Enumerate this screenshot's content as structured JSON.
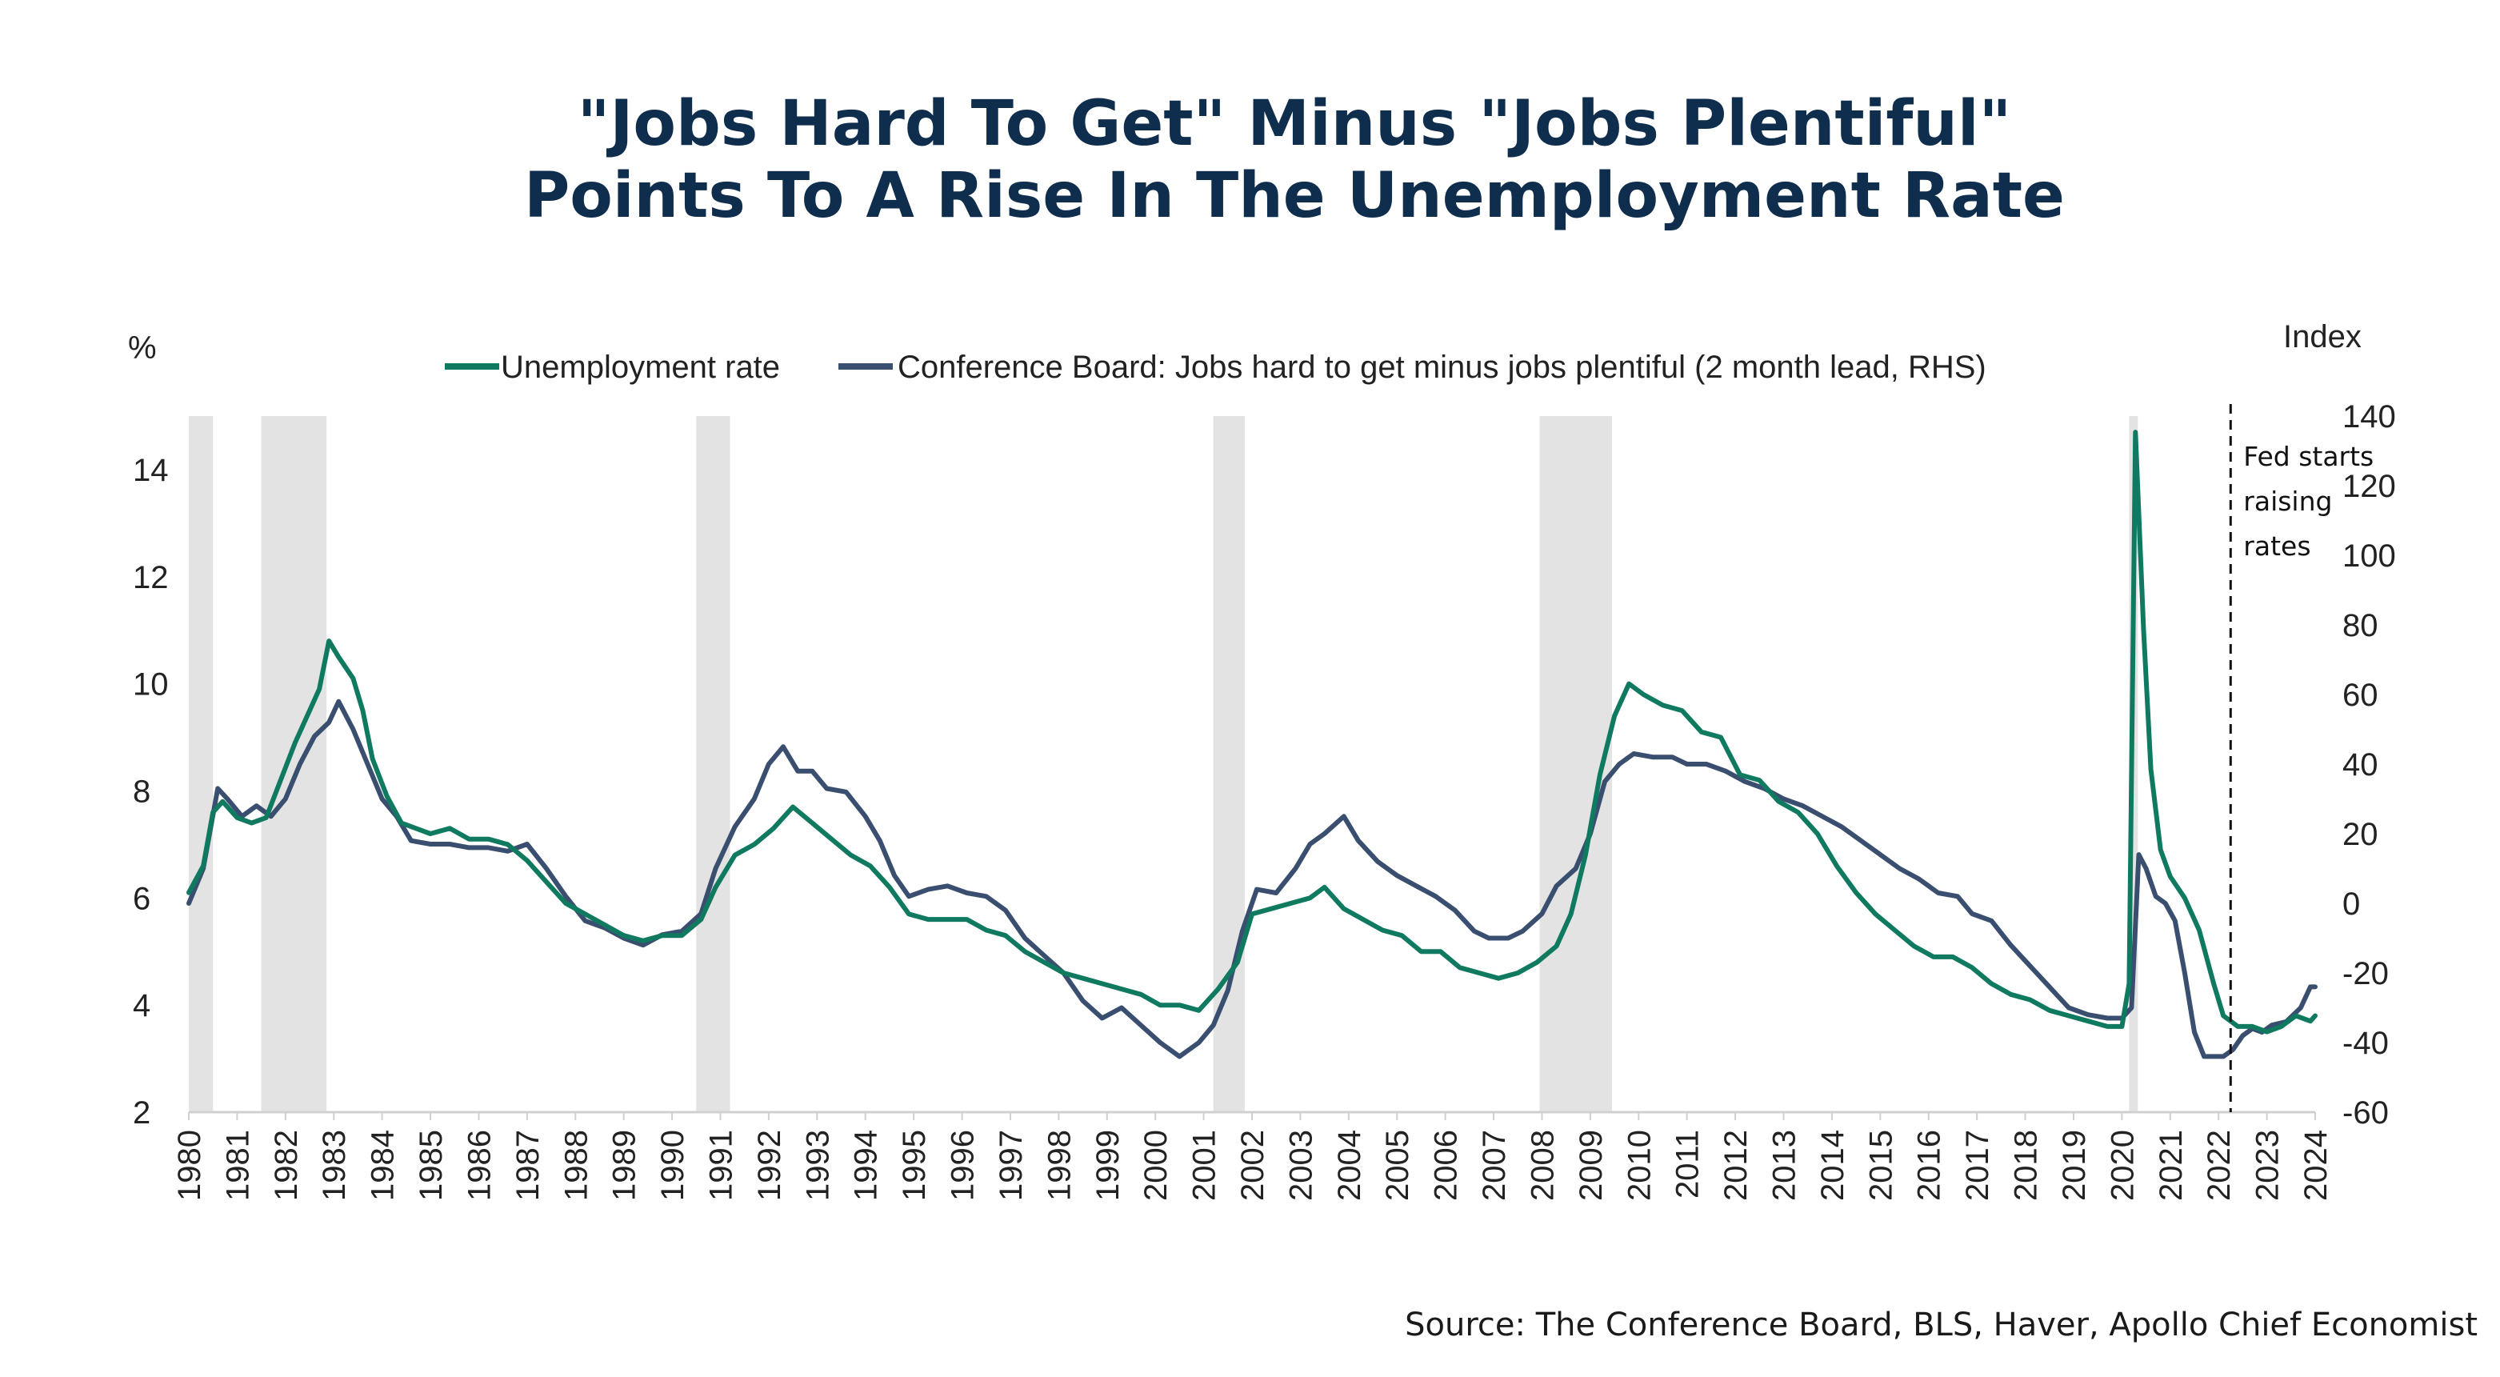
{
  "title": {
    "line1": "\"Jobs Hard To Get\" Minus \"Jobs Plentiful\"",
    "line2": "Points To A Rise In The Unemployment Rate"
  },
  "source": "Source: The Conference Board, BLS, Haver, Apollo Chief Economist",
  "colors": {
    "unemployment": "#0f7a5f",
    "conference": "#3a4f6f",
    "recession": "#e3e3e3"
  },
  "chart_data": {
    "type": "line",
    "left_axis_label": "%",
    "right_axis_label": "Index",
    "y_left": {
      "range": [
        2,
        15
      ],
      "ticks": [
        2,
        4,
        6,
        8,
        10,
        12,
        14
      ]
    },
    "y_right": {
      "range": [
        -60,
        140
      ],
      "ticks": [
        -60,
        -40,
        -20,
        0,
        20,
        40,
        60,
        80,
        100,
        120,
        140
      ]
    },
    "x_range": [
      1980,
      2024
    ],
    "x_ticks": [
      "1980",
      "1981",
      "1982",
      "1983",
      "1984",
      "1985",
      "1986",
      "1987",
      "1988",
      "1989",
      "1990",
      "1991",
      "1992",
      "1993",
      "1994",
      "1995",
      "1996",
      "1997",
      "1998",
      "1999",
      "2000",
      "2001",
      "2002",
      "2003",
      "2004",
      "2005",
      "2006",
      "2007",
      "2008",
      "2009",
      "2010",
      "2011",
      "2012",
      "2013",
      "2014",
      "2015",
      "2016",
      "2017",
      "2018",
      "2019",
      "2020",
      "2021",
      "2022",
      "2023",
      "2024"
    ],
    "recessions": [
      [
        1980.0,
        1980.5
      ],
      [
        1981.5,
        1982.85
      ],
      [
        1990.5,
        1991.2
      ],
      [
        2001.2,
        2001.85
      ],
      [
        2007.95,
        2009.45
      ],
      [
        2020.15,
        2020.33
      ]
    ],
    "annotation": {
      "x": 2022.25,
      "lines": [
        "Fed starts",
        "raising",
        "rates"
      ]
    },
    "series": [
      {
        "name": "Unemployment rate",
        "axis": "left",
        "points": [
          [
            1980.0,
            6.1
          ],
          [
            1980.3,
            6.6
          ],
          [
            1980.5,
            7.6
          ],
          [
            1980.7,
            7.8
          ],
          [
            1981.0,
            7.5
          ],
          [
            1981.3,
            7.4
          ],
          [
            1981.6,
            7.5
          ],
          [
            1981.9,
            8.2
          ],
          [
            1982.2,
            8.9
          ],
          [
            1982.5,
            9.5
          ],
          [
            1982.7,
            9.9
          ],
          [
            1982.9,
            10.8
          ],
          [
            1983.1,
            10.5
          ],
          [
            1983.4,
            10.1
          ],
          [
            1983.6,
            9.5
          ],
          [
            1983.8,
            8.6
          ],
          [
            1984.1,
            7.9
          ],
          [
            1984.4,
            7.4
          ],
          [
            1984.7,
            7.3
          ],
          [
            1985.0,
            7.2
          ],
          [
            1985.4,
            7.3
          ],
          [
            1985.8,
            7.1
          ],
          [
            1986.2,
            7.1
          ],
          [
            1986.6,
            7.0
          ],
          [
            1987.0,
            6.7
          ],
          [
            1987.4,
            6.3
          ],
          [
            1987.8,
            5.9
          ],
          [
            1988.2,
            5.7
          ],
          [
            1988.6,
            5.5
          ],
          [
            1989.0,
            5.3
          ],
          [
            1989.4,
            5.2
          ],
          [
            1989.8,
            5.3
          ],
          [
            1990.2,
            5.3
          ],
          [
            1990.6,
            5.6
          ],
          [
            1990.9,
            6.2
          ],
          [
            1991.3,
            6.8
          ],
          [
            1991.7,
            7.0
          ],
          [
            1992.1,
            7.3
          ],
          [
            1992.5,
            7.7
          ],
          [
            1992.9,
            7.4
          ],
          [
            1993.3,
            7.1
          ],
          [
            1993.7,
            6.8
          ],
          [
            1994.1,
            6.6
          ],
          [
            1994.5,
            6.2
          ],
          [
            1994.9,
            5.7
          ],
          [
            1995.3,
            5.6
          ],
          [
            1995.7,
            5.6
          ],
          [
            1996.1,
            5.6
          ],
          [
            1996.5,
            5.4
          ],
          [
            1996.9,
            5.3
          ],
          [
            1997.3,
            5.0
          ],
          [
            1997.7,
            4.8
          ],
          [
            1998.1,
            4.6
          ],
          [
            1998.5,
            4.5
          ],
          [
            1998.9,
            4.4
          ],
          [
            1999.3,
            4.3
          ],
          [
            1999.7,
            4.2
          ],
          [
            2000.1,
            4.0
          ],
          [
            2000.5,
            4.0
          ],
          [
            2000.9,
            3.9
          ],
          [
            2001.3,
            4.3
          ],
          [
            2001.7,
            4.8
          ],
          [
            2002.0,
            5.7
          ],
          [
            2002.4,
            5.8
          ],
          [
            2002.8,
            5.9
          ],
          [
            2003.2,
            6.0
          ],
          [
            2003.5,
            6.2
          ],
          [
            2003.9,
            5.8
          ],
          [
            2004.3,
            5.6
          ],
          [
            2004.7,
            5.4
          ],
          [
            2005.1,
            5.3
          ],
          [
            2005.5,
            5.0
          ],
          [
            2005.9,
            5.0
          ],
          [
            2006.3,
            4.7
          ],
          [
            2006.7,
            4.6
          ],
          [
            2007.1,
            4.5
          ],
          [
            2007.5,
            4.6
          ],
          [
            2007.9,
            4.8
          ],
          [
            2008.3,
            5.1
          ],
          [
            2008.6,
            5.7
          ],
          [
            2008.9,
            6.8
          ],
          [
            2009.2,
            8.3
          ],
          [
            2009.5,
            9.4
          ],
          [
            2009.8,
            10.0
          ],
          [
            2010.1,
            9.8
          ],
          [
            2010.5,
            9.6
          ],
          [
            2010.9,
            9.5
          ],
          [
            2011.3,
            9.1
          ],
          [
            2011.7,
            9.0
          ],
          [
            2012.1,
            8.3
          ],
          [
            2012.5,
            8.2
          ],
          [
            2012.9,
            7.8
          ],
          [
            2013.3,
            7.6
          ],
          [
            2013.7,
            7.2
          ],
          [
            2014.1,
            6.6
          ],
          [
            2014.5,
            6.1
          ],
          [
            2014.9,
            5.7
          ],
          [
            2015.3,
            5.4
          ],
          [
            2015.7,
            5.1
          ],
          [
            2016.1,
            4.9
          ],
          [
            2016.5,
            4.9
          ],
          [
            2016.9,
            4.7
          ],
          [
            2017.3,
            4.4
          ],
          [
            2017.7,
            4.2
          ],
          [
            2018.1,
            4.1
          ],
          [
            2018.5,
            3.9
          ],
          [
            2018.9,
            3.8
          ],
          [
            2019.3,
            3.7
          ],
          [
            2019.7,
            3.6
          ],
          [
            2020.0,
            3.6
          ],
          [
            2020.15,
            4.4
          ],
          [
            2020.28,
            14.7
          ],
          [
            2020.45,
            11.0
          ],
          [
            2020.6,
            8.4
          ],
          [
            2020.8,
            6.9
          ],
          [
            2021.0,
            6.4
          ],
          [
            2021.3,
            6.0
          ],
          [
            2021.6,
            5.4
          ],
          [
            2021.9,
            4.4
          ],
          [
            2022.1,
            3.8
          ],
          [
            2022.4,
            3.6
          ],
          [
            2022.7,
            3.6
          ],
          [
            2023.0,
            3.5
          ],
          [
            2023.3,
            3.6
          ],
          [
            2023.6,
            3.8
          ],
          [
            2023.9,
            3.7
          ],
          [
            2024.0,
            3.8
          ]
        ]
      },
      {
        "name": "Conference Board: Jobs hard to get minus jobs plentiful (2 month lead, RHS)",
        "axis": "right",
        "points": [
          [
            1980.0,
            0
          ],
          [
            1980.3,
            10
          ],
          [
            1980.6,
            33
          ],
          [
            1980.8,
            30
          ],
          [
            1981.1,
            25
          ],
          [
            1981.4,
            28
          ],
          [
            1981.7,
            25
          ],
          [
            1982.0,
            30
          ],
          [
            1982.3,
            40
          ],
          [
            1982.6,
            48
          ],
          [
            1982.9,
            52
          ],
          [
            1983.1,
            58
          ],
          [
            1983.4,
            50
          ],
          [
            1983.7,
            40
          ],
          [
            1984.0,
            30
          ],
          [
            1984.3,
            25
          ],
          [
            1984.6,
            18
          ],
          [
            1985.0,
            17
          ],
          [
            1985.4,
            17
          ],
          [
            1985.8,
            16
          ],
          [
            1986.2,
            16
          ],
          [
            1986.6,
            15
          ],
          [
            1987.0,
            17
          ],
          [
            1987.4,
            10
          ],
          [
            1987.8,
            2
          ],
          [
            1988.2,
            -5
          ],
          [
            1988.6,
            -7
          ],
          [
            1989.0,
            -10
          ],
          [
            1989.4,
            -12
          ],
          [
            1989.8,
            -9
          ],
          [
            1990.2,
            -8
          ],
          [
            1990.6,
            -3
          ],
          [
            1990.9,
            10
          ],
          [
            1991.3,
            22
          ],
          [
            1991.7,
            30
          ],
          [
            1992.0,
            40
          ],
          [
            1992.3,
            45
          ],
          [
            1992.6,
            38
          ],
          [
            1992.9,
            38
          ],
          [
            1993.2,
            33
          ],
          [
            1993.6,
            32
          ],
          [
            1994.0,
            25
          ],
          [
            1994.3,
            18
          ],
          [
            1994.6,
            8
          ],
          [
            1994.9,
            2
          ],
          [
            1995.3,
            4
          ],
          [
            1995.7,
            5
          ],
          [
            1996.1,
            3
          ],
          [
            1996.5,
            2
          ],
          [
            1996.9,
            -2
          ],
          [
            1997.3,
            -10
          ],
          [
            1997.7,
            -15
          ],
          [
            1998.1,
            -20
          ],
          [
            1998.5,
            -28
          ],
          [
            1998.9,
            -33
          ],
          [
            1999.3,
            -30
          ],
          [
            1999.7,
            -35
          ],
          [
            2000.1,
            -40
          ],
          [
            2000.5,
            -44
          ],
          [
            2000.9,
            -40
          ],
          [
            2001.2,
            -35
          ],
          [
            2001.5,
            -25
          ],
          [
            2001.8,
            -8
          ],
          [
            2002.1,
            4
          ],
          [
            2002.5,
            3
          ],
          [
            2002.9,
            10
          ],
          [
            2003.2,
            17
          ],
          [
            2003.5,
            20
          ],
          [
            2003.9,
            25
          ],
          [
            2004.2,
            18
          ],
          [
            2004.6,
            12
          ],
          [
            2005.0,
            8
          ],
          [
            2005.4,
            5
          ],
          [
            2005.8,
            2
          ],
          [
            2006.2,
            -2
          ],
          [
            2006.6,
            -8
          ],
          [
            2006.9,
            -10
          ],
          [
            2007.3,
            -10
          ],
          [
            2007.6,
            -8
          ],
          [
            2008.0,
            -3
          ],
          [
            2008.3,
            5
          ],
          [
            2008.7,
            10
          ],
          [
            2009.0,
            20
          ],
          [
            2009.3,
            35
          ],
          [
            2009.6,
            40
          ],
          [
            2009.9,
            43
          ],
          [
            2010.3,
            42
          ],
          [
            2010.7,
            42
          ],
          [
            2011.0,
            40
          ],
          [
            2011.4,
            40
          ],
          [
            2011.8,
            38
          ],
          [
            2012.2,
            35
          ],
          [
            2012.6,
            33
          ],
          [
            2013.0,
            30
          ],
          [
            2013.4,
            28
          ],
          [
            2013.8,
            25
          ],
          [
            2014.2,
            22
          ],
          [
            2014.6,
            18
          ],
          [
            2015.0,
            14
          ],
          [
            2015.4,
            10
          ],
          [
            2015.8,
            7
          ],
          [
            2016.2,
            3
          ],
          [
            2016.6,
            2
          ],
          [
            2016.9,
            -3
          ],
          [
            2017.3,
            -5
          ],
          [
            2017.7,
            -12
          ],
          [
            2018.1,
            -18
          ],
          [
            2018.5,
            -24
          ],
          [
            2018.9,
            -30
          ],
          [
            2019.3,
            -32
          ],
          [
            2019.7,
            -33
          ],
          [
            2020.0,
            -33
          ],
          [
            2020.2,
            -30
          ],
          [
            2020.35,
            14
          ],
          [
            2020.5,
            10
          ],
          [
            2020.7,
            2
          ],
          [
            2020.9,
            0
          ],
          [
            2021.1,
            -5
          ],
          [
            2021.3,
            -20
          ],
          [
            2021.5,
            -37
          ],
          [
            2021.7,
            -44
          ],
          [
            2021.9,
            -44
          ],
          [
            2022.1,
            -44
          ],
          [
            2022.3,
            -42
          ],
          [
            2022.5,
            -38
          ],
          [
            2022.7,
            -36
          ],
          [
            2022.9,
            -37
          ],
          [
            2023.1,
            -35
          ],
          [
            2023.4,
            -34
          ],
          [
            2023.7,
            -30
          ],
          [
            2023.9,
            -24
          ],
          [
            2024.0,
            -24
          ]
        ]
      }
    ]
  }
}
